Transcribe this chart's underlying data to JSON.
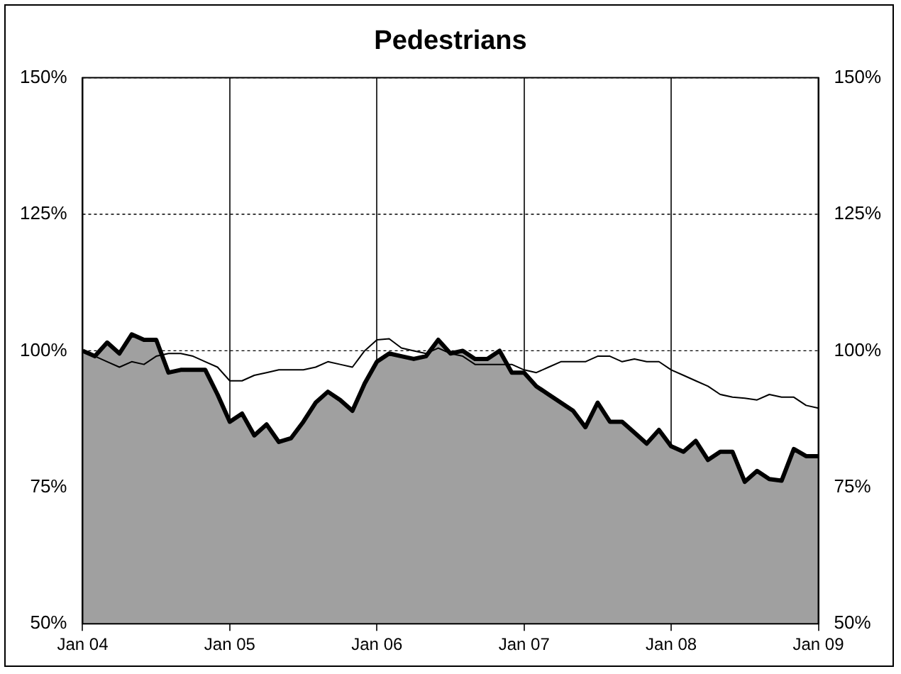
{
  "chart_data": {
    "type": "line",
    "title": "Pedestrians",
    "x": [
      "2004-01",
      "2004-02",
      "2004-03",
      "2004-04",
      "2004-05",
      "2004-06",
      "2004-07",
      "2004-08",
      "2004-09",
      "2004-10",
      "2004-11",
      "2004-12",
      "2005-01",
      "2005-02",
      "2005-03",
      "2005-04",
      "2005-05",
      "2005-06",
      "2005-07",
      "2005-08",
      "2005-09",
      "2005-10",
      "2005-11",
      "2005-12",
      "2006-01",
      "2006-02",
      "2006-03",
      "2006-04",
      "2006-05",
      "2006-06",
      "2006-07",
      "2006-08",
      "2006-09",
      "2006-10",
      "2006-11",
      "2006-12",
      "2007-01",
      "2007-02",
      "2007-03",
      "2007-04",
      "2007-05",
      "2007-06",
      "2007-07",
      "2007-08",
      "2007-09",
      "2007-10",
      "2007-11",
      "2007-12",
      "2008-01",
      "2008-02",
      "2008-03",
      "2008-04",
      "2008-05",
      "2008-06",
      "2008-07",
      "2008-08",
      "2008-09",
      "2008-10",
      "2008-11",
      "2008-12",
      "2009-01"
    ],
    "series": [
      {
        "type": "area",
        "color": "#a0a0a0",
        "values": [
          100,
          99,
          101.5,
          99.5,
          103,
          102,
          102,
          96,
          96.5,
          96.5,
          96.5,
          92,
          87,
          88.5,
          84.5,
          86.5,
          83.3,
          84,
          87,
          90.5,
          92.5,
          91,
          89,
          94,
          98,
          99.5,
          99,
          98.5,
          99,
          102,
          99.5,
          100,
          98.5,
          98.5,
          100,
          96,
          96,
          93.5,
          92,
          90.5,
          89,
          86,
          90.5,
          87,
          87,
          85,
          83,
          85.5,
          82.5,
          81.5,
          83.5,
          80,
          81.5,
          81.5,
          76,
          78,
          76.5,
          76.2,
          82,
          80.7,
          80.7
        ]
      },
      {
        "type": "line",
        "color": "#000000",
        "values": [
          100,
          99,
          98,
          97,
          98,
          97.5,
          99,
          99.5,
          99.5,
          99,
          98,
          97,
          94.5,
          94.5,
          95.5,
          96,
          96.5,
          96.5,
          96.5,
          97,
          98,
          97.5,
          97,
          100,
          102,
          102.2,
          100.5,
          100,
          99.5,
          100.5,
          99.5,
          99,
          97.5,
          97.5,
          97.5,
          97.5,
          96.5,
          96,
          97,
          98,
          98,
          98,
          99,
          99,
          98,
          98.5,
          98,
          98,
          96.5,
          95.5,
          94.5,
          93.5,
          92,
          91.5,
          91.3,
          91,
          92,
          91.5,
          91.5,
          90,
          89.5
        ]
      }
    ],
    "xlim": [
      "2004-01",
      "2009-01"
    ],
    "xticks": [
      {
        "value": "2004-01",
        "label": "Jan 04"
      },
      {
        "value": "2005-01",
        "label": "Jan 05"
      },
      {
        "value": "2006-01",
        "label": "Jan 06"
      },
      {
        "value": "2007-01",
        "label": "Jan 07"
      },
      {
        "value": "2008-01",
        "label": "Jan 08"
      },
      {
        "value": "2009-01",
        "label": "Jan 09"
      }
    ],
    "ylim": [
      50,
      150
    ],
    "yticks": [
      {
        "value": 50,
        "label": "50%"
      },
      {
        "value": 75,
        "label": "75%"
      },
      {
        "value": 100,
        "label": "100%"
      },
      {
        "value": 125,
        "label": "125%"
      },
      {
        "value": 150,
        "label": "150%"
      }
    ],
    "y2lim": [
      50,
      150
    ],
    "y2ticks": [
      {
        "value": 50,
        "label": "50%"
      },
      {
        "value": 75,
        "label": "75%"
      },
      {
        "value": 100,
        "label": "100%"
      },
      {
        "value": 125,
        "label": "125%"
      },
      {
        "value": 150,
        "label": "150%"
      }
    ],
    "grid": true,
    "legend": false,
    "marker": "none"
  }
}
